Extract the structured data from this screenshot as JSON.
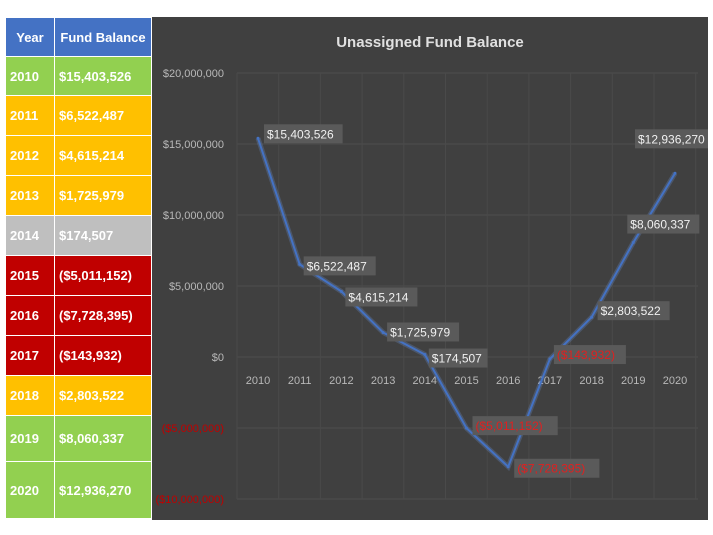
{
  "table": {
    "headers": [
      "Year",
      "Fund Balance"
    ],
    "rows": [
      {
        "year": "2010",
        "balance": "$15,403,526",
        "color": "#92d050"
      },
      {
        "year": "2011",
        "balance": "$6,522,487",
        "color": "#ffc000"
      },
      {
        "year": "2012",
        "balance": "$4,615,214",
        "color": "#ffc000"
      },
      {
        "year": "2013",
        "balance": "$1,725,979",
        "color": "#ffc000"
      },
      {
        "year": "2014",
        "balance": "$174,507",
        "color": "#bfbfbf"
      },
      {
        "year": "2015",
        "balance": "($5,011,152)",
        "color": "#c00000"
      },
      {
        "year": "2016",
        "balance": "($7,728,395)",
        "color": "#c00000"
      },
      {
        "year": "2017",
        "balance": "($143,932)",
        "color": "#c00000"
      },
      {
        "year": "2018",
        "balance": "$2,803,522",
        "color": "#ffc000"
      },
      {
        "year": "2019",
        "balance": "$8,060,337",
        "color": "#92d050"
      },
      {
        "year": "2020",
        "balance": "$12,936,270",
        "color": "#92d050"
      }
    ]
  },
  "chart_data": {
    "type": "line",
    "title": "Unassigned Fund Balance",
    "categories": [
      "2010",
      "2011",
      "2012",
      "2013",
      "2014",
      "2015",
      "2016",
      "2017",
      "2018",
      "2019",
      "2020"
    ],
    "series": [
      {
        "values": [
          15403526,
          6522487,
          4615214,
          1725979,
          174507,
          -5011152,
          -7728395,
          -143932,
          2803522,
          8060337,
          12936270
        ],
        "color": "#4472c4"
      }
    ],
    "data_labels": [
      "$15,403,526",
      "$6,522,487",
      "$4,615,214",
      "$1,725,979",
      "$174,507",
      "($5,011,152)",
      "($7,728,395)",
      "($143,932)",
      "$2,803,522",
      "$8,060,337",
      "$12,936,270"
    ],
    "yticks": [
      20000000,
      15000000,
      10000000,
      5000000,
      0,
      -5000000,
      -10000000
    ],
    "ytick_labels": [
      "$20,000,000",
      "$15,000,000",
      "$10,000,000",
      "$5,000,000",
      "$0",
      "($5,000,000)",
      "($10,000,000)"
    ],
    "ylim": [
      -10000000,
      20000000
    ],
    "grid": true,
    "negative_color": "#c00000",
    "background": "#404040"
  }
}
